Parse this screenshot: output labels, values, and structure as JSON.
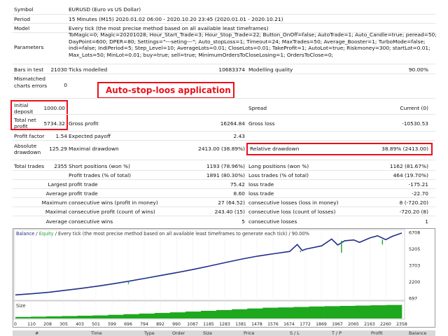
{
  "report": {
    "symbol_label": "Symbol",
    "symbol_value": "EURUSD (Euro vs US Dollar)",
    "period_label": "Period",
    "period_value": "15 Minutes (M15) 2020.01.02 06:00 - 2020.10.20 23:45 (2020.01.01 - 2020.10.21)",
    "model_label": "Model",
    "model_value": "Every tick (the most precise method based on all available least timeframes)",
    "parameters_label": "Parameters",
    "parameters_value": "ToMagic=0; Magic=20201028; Hour_Start_Trade=3; Hour_Stop_Trade=22; Button_OnOff=false; AutoTrade=1; Auto_Candle=true; peread=50; DayPoint=600; DPER=80; Settings=\"---seting---\"; Auto_stopLoss=1; Timeout=24; MaxTrades=50; Average_Booster=1; TurboMode=false; indi=false; IndiPeriod=5; Step_Level=10; AverageLots=0.01; CloseLots=0.01; TakeProfit=1; AutoLot=true; Riskmoney=300; startLot=0.01; Max_Lots=50; MinLot=0.01; buy=true; sell=true; MinimumOrdersToCloseLosing=1; OrdersToClose=0;",
    "bars_label": "Bars in test",
    "bars_value": "21030",
    "ticks_label": "Ticks modelled",
    "ticks_value": "10683374",
    "quality_label": "Modelling quality",
    "quality_value": "90.00%",
    "mismatched_label": "Mismatched charts errors",
    "mismatched_value": "0",
    "initial_deposit_label": "Initial deposit",
    "initial_deposit_value": "1000.00",
    "spread_label": "Spread",
    "spread_value": "Current (0)",
    "net_profit_label": "Total net profit",
    "net_profit_value": "5734.32",
    "gross_profit_label": "Gross profit",
    "gross_profit_value": "16264.84",
    "gross_loss_label": "Gross loss",
    "gross_loss_value": "-10530.53",
    "profit_factor_label": "Profit factor",
    "profit_factor_value": "1.54",
    "expected_payoff_label": "Expected payoff",
    "expected_payoff_value": "2.43",
    "abs_dd_label": "Absolute drawdown",
    "abs_dd_value": "125.29",
    "max_dd_label": "Maximal drawdown",
    "max_dd_value": "2413.00 (38.89%)",
    "rel_dd_label": "Relative drawdown",
    "rel_dd_value": "38.89% (2413.00)",
    "total_trades_label": "Total trades",
    "total_trades_value": "2355",
    "short_label": "Short positions (won %)",
    "short_value": "1193 (78.96%)",
    "long_label": "Long positions (won %)",
    "long_value": "1162 (81.67%)",
    "profit_trades_label": "Profit trades (% of total)",
    "profit_trades_value": "1891 (80.30%)",
    "loss_trades_label": "Loss trades (% of total)",
    "loss_trades_value": "464 (19.70%)",
    "largest_label": "Largest",
    "average_label": "Average",
    "maximum_label": "Maximum",
    "maximal_label": "Maximal",
    "largest_profit_label": "profit trade",
    "largest_profit_value": "75.42",
    "largest_loss_label": "loss trade",
    "largest_loss_value": "-175.21",
    "avg_profit_label": "profit trade",
    "avg_profit_value": "8.60",
    "avg_loss_label": "loss trade",
    "avg_loss_value": "-22.70",
    "max_cw_money_label": "consecutive wins (profit in money)",
    "max_cw_money_value": "27 (64.52)",
    "max_cl_money_label": "consecutive losses (loss in money)",
    "max_cl_money_value": "8 (-720.20)",
    "maximal_cp_label": "consecutive profit (count of wins)",
    "maximal_cp_value": "243.40 (15)",
    "maximal_cl_label": "consecutive loss (count of losses)",
    "maximal_cl_value": "-720.20 (8)",
    "avg_cw_label": "consecutive wins",
    "avg_cw_value": "5",
    "avg_cl_label": "consecutive losses",
    "avg_cl_value": "1",
    "annotation": "Auto-stop-loos application"
  },
  "chart_data": {
    "type": "line",
    "legend_balance": "Balance",
    "legend_sep": " / ",
    "legend_equity": "Equity",
    "legend_rest": " / Every tick (the most precise method based on all available least timeframes to generate each tick) / 90.00%",
    "size_label": "Size",
    "y_ticks": [
      "6708",
      "5205",
      "3703",
      "2200",
      "697"
    ],
    "x_ticks": [
      "0",
      "110",
      "208",
      "305",
      "403",
      "501",
      "599",
      "696",
      "794",
      "892",
      "990",
      "1087",
      "1185",
      "1283",
      "1381",
      "1478",
      "1576",
      "1674",
      "1772",
      "1869",
      "1967",
      "2065",
      "2163",
      "2260",
      "2358"
    ],
    "xlim": [
      0,
      2358
    ],
    "ylim": [
      697,
      6708
    ],
    "balance": [
      [
        0,
        1000
      ],
      [
        110,
        1120
      ],
      [
        208,
        1250
      ],
      [
        305,
        1420
      ],
      [
        403,
        1600
      ],
      [
        501,
        1800
      ],
      [
        599,
        2020
      ],
      [
        696,
        2260
      ],
      [
        794,
        2520
      ],
      [
        892,
        2790
      ],
      [
        990,
        3050
      ],
      [
        1087,
        3330
      ],
      [
        1185,
        3640
      ],
      [
        1283,
        3960
      ],
      [
        1381,
        4270
      ],
      [
        1478,
        4540
      ],
      [
        1576,
        4760
      ],
      [
        1674,
        4970
      ],
      [
        1720,
        5600
      ],
      [
        1750,
        5050
      ],
      [
        1772,
        5180
      ],
      [
        1869,
        5480
      ],
      [
        1930,
        6100
      ],
      [
        1967,
        5560
      ],
      [
        2010,
        5950
      ],
      [
        2065,
        6020
      ],
      [
        2100,
        5800
      ],
      [
        2163,
        6200
      ],
      [
        2210,
        6400
      ],
      [
        2260,
        6050
      ],
      [
        2300,
        6350
      ],
      [
        2358,
        6650
      ]
    ],
    "equity_dips": [
      [
        690,
        2000
      ],
      [
        1740,
        4900
      ],
      [
        1990,
        4850
      ],
      [
        2240,
        5600
      ]
    ],
    "size_series_fraction": [
      0.1,
      0.12,
      0.14,
      0.16,
      0.18,
      0.2,
      0.24,
      0.28,
      0.32,
      0.36,
      0.4,
      0.45,
      0.5,
      0.55,
      0.6,
      0.65,
      0.7,
      0.72,
      0.75,
      0.78,
      0.8,
      0.82,
      0.84,
      0.86,
      0.88
    ]
  },
  "table_header": {
    "cols": [
      "#",
      "Time",
      "Type",
      "Order",
      "Size",
      "Price",
      "S / L",
      "T / P",
      "Profit",
      "Balance"
    ]
  }
}
